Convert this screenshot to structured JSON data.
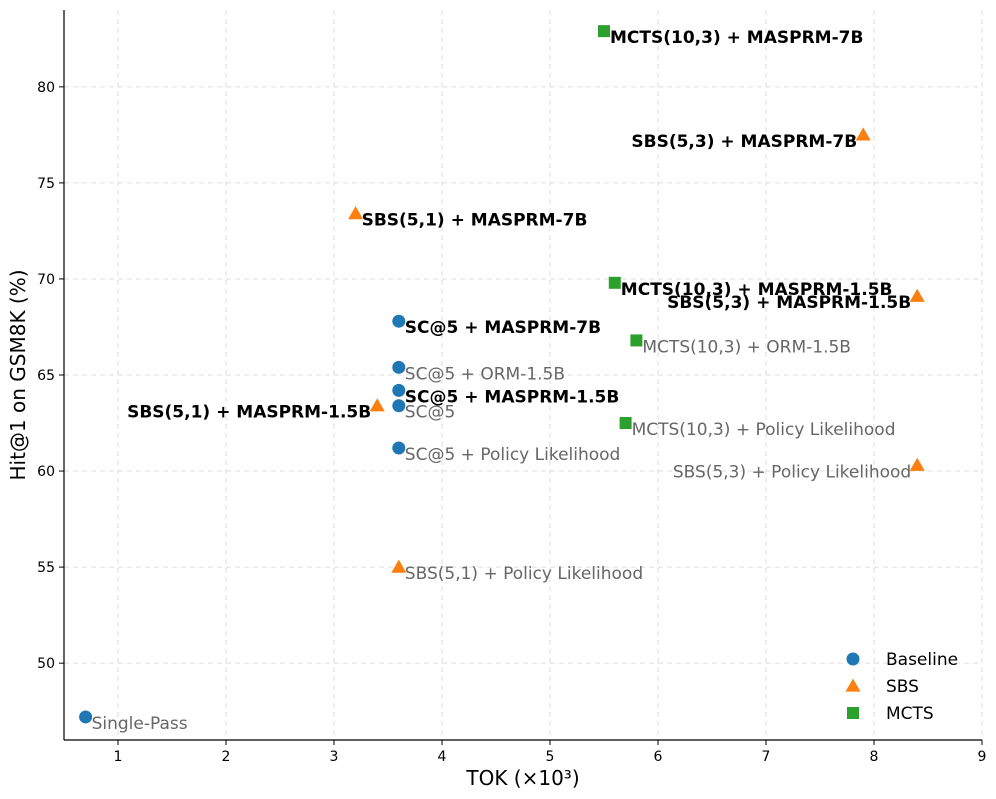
{
  "chart_data": {
    "type": "scatter",
    "xlabel": "TOK (×10³)",
    "ylabel": "Hit@1 on GSM8K (%)",
    "xlim": [
      0.5,
      9
    ],
    "ylim": [
      46,
      84
    ],
    "xticks": [
      1,
      2,
      3,
      4,
      5,
      6,
      7,
      8,
      9
    ],
    "yticks": [
      50,
      55,
      60,
      65,
      70,
      75,
      80
    ],
    "grid": true,
    "legend_position": "bottom-right",
    "series": [
      {
        "name": "Baseline",
        "marker": "circle",
        "color": "#1f77b4",
        "points": [
          {
            "x": 0.7,
            "y": 47.2,
            "label": "Single-Pass",
            "bold": false,
            "anchor": "start"
          },
          {
            "x": 3.6,
            "y": 67.8,
            "label": "SC@5 + MASPRM-7B",
            "bold": true,
            "anchor": "start"
          },
          {
            "x": 3.6,
            "y": 65.4,
            "label": "SC@5 + ORM-1.5B",
            "bold": false,
            "anchor": "start"
          },
          {
            "x": 3.6,
            "y": 64.2,
            "label": "SC@5 + MASPRM-1.5B",
            "bold": true,
            "anchor": "start"
          },
          {
            "x": 3.6,
            "y": 63.4,
            "label": "SC@5",
            "bold": false,
            "anchor": "start"
          },
          {
            "x": 3.6,
            "y": 61.2,
            "label": "SC@5 + Policy Likelihood",
            "bold": false,
            "anchor": "start"
          }
        ]
      },
      {
        "name": "SBS",
        "marker": "triangle",
        "color": "#ff7f0e",
        "points": [
          {
            "x": 7.9,
            "y": 77.5,
            "label": "SBS(5,3) + MASPRM-7B",
            "bold": true,
            "anchor": "end"
          },
          {
            "x": 3.2,
            "y": 73.4,
            "label": "SBS(5,1) + MASPRM-7B",
            "bold": true,
            "anchor": "start"
          },
          {
            "x": 8.4,
            "y": 69.1,
            "label": "SBS(5,3) + MASPRM-1.5B",
            "bold": true,
            "anchor": "end"
          },
          {
            "x": 3.4,
            "y": 63.4,
            "label": "SBS(5,1) + MASPRM-1.5B",
            "bold": true,
            "anchor": "end"
          },
          {
            "x": 8.4,
            "y": 60.3,
            "label": "SBS(5,3) + Policy Likelihood",
            "bold": false,
            "anchor": "end"
          },
          {
            "x": 3.6,
            "y": 55.0,
            "label": "SBS(5,1) + Policy Likelihood",
            "bold": false,
            "anchor": "start"
          }
        ]
      },
      {
        "name": "MCTS",
        "marker": "square",
        "color": "#2ca02c",
        "points": [
          {
            "x": 5.5,
            "y": 82.9,
            "label": "MCTS(10,3) + MASPRM-7B",
            "bold": true,
            "anchor": "start"
          },
          {
            "x": 5.6,
            "y": 69.8,
            "label": "MCTS(10,3) + MASPRM-1.5B",
            "bold": true,
            "anchor": "start"
          },
          {
            "x": 5.8,
            "y": 66.8,
            "label": "MCTS(10,3) + ORM-1.5B",
            "bold": false,
            "anchor": "start"
          },
          {
            "x": 5.7,
            "y": 62.5,
            "label": "MCTS(10,3) + Policy Likelihood",
            "bold": false,
            "anchor": "start"
          }
        ]
      }
    ]
  }
}
